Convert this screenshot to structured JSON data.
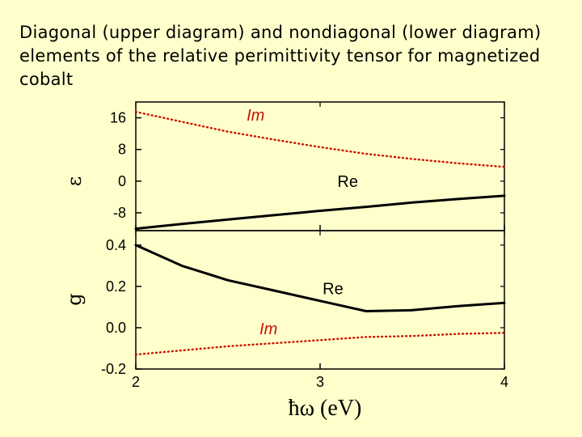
{
  "slide": {
    "title": "Diagonal (upper diagram) and nondiagonal (lower diagram) elements of the relative perimittivity tensor for magnetized cobalt"
  },
  "colors": {
    "re": "#000000",
    "im": "#CC1100",
    "background": "#FFFFCC"
  },
  "chart_data": [
    {
      "type": "line",
      "panel": "upper",
      "ylabel": "ε",
      "xlim": [
        2,
        4
      ],
      "ylim": [
        -12.5,
        20
      ],
      "yticks": [
        16,
        8,
        0,
        -8
      ],
      "ytick_labels": [
        "16",
        "8",
        "0",
        "-8"
      ],
      "grid": false,
      "series": [
        {
          "name": "Im",
          "style": "dotted",
          "color": "#CC1100",
          "x": [
            2.0,
            2.25,
            2.5,
            2.75,
            3.0,
            3.25,
            3.5,
            3.75,
            4.0
          ],
          "y": [
            17.5,
            15.0,
            12.5,
            10.5,
            8.6,
            6.9,
            5.6,
            4.5,
            3.6
          ]
        },
        {
          "name": "Re",
          "style": "solid",
          "color": "#000000",
          "x": [
            2.0,
            2.25,
            2.5,
            2.75,
            3.0,
            3.25,
            3.5,
            3.75,
            4.0
          ],
          "y": [
            -12.0,
            -10.8,
            -9.7,
            -8.6,
            -7.5,
            -6.5,
            -5.4,
            -4.5,
            -3.7
          ]
        }
      ]
    },
    {
      "type": "line",
      "panel": "lower",
      "ylabel": "g",
      "xlim": [
        2,
        4
      ],
      "ylim": [
        -0.2,
        0.47
      ],
      "yticks": [
        0.4,
        0.2,
        0.0,
        -0.2
      ],
      "ytick_labels": [
        "0.4",
        "0.2",
        "0.0",
        "-0.2"
      ],
      "xticks": [
        2,
        3,
        4
      ],
      "xtick_labels": [
        "2",
        "3",
        "4"
      ],
      "xlabel": "ħω (eV)",
      "grid": false,
      "series": [
        {
          "name": "Re",
          "style": "solid",
          "color": "#000000",
          "x": [
            2.0,
            2.25,
            2.5,
            2.75,
            3.0,
            3.25,
            3.5,
            3.75,
            4.0
          ],
          "y": [
            0.4,
            0.3,
            0.23,
            0.18,
            0.13,
            0.08,
            0.085,
            0.105,
            0.12
          ]
        },
        {
          "name": "Im",
          "style": "dotted",
          "color": "#CC1100",
          "x": [
            2.0,
            2.25,
            2.5,
            2.75,
            3.0,
            3.25,
            3.5,
            3.75,
            4.0
          ],
          "y": [
            -0.13,
            -0.11,
            -0.09,
            -0.075,
            -0.06,
            -0.045,
            -0.04,
            -0.03,
            -0.025
          ]
        }
      ]
    }
  ]
}
